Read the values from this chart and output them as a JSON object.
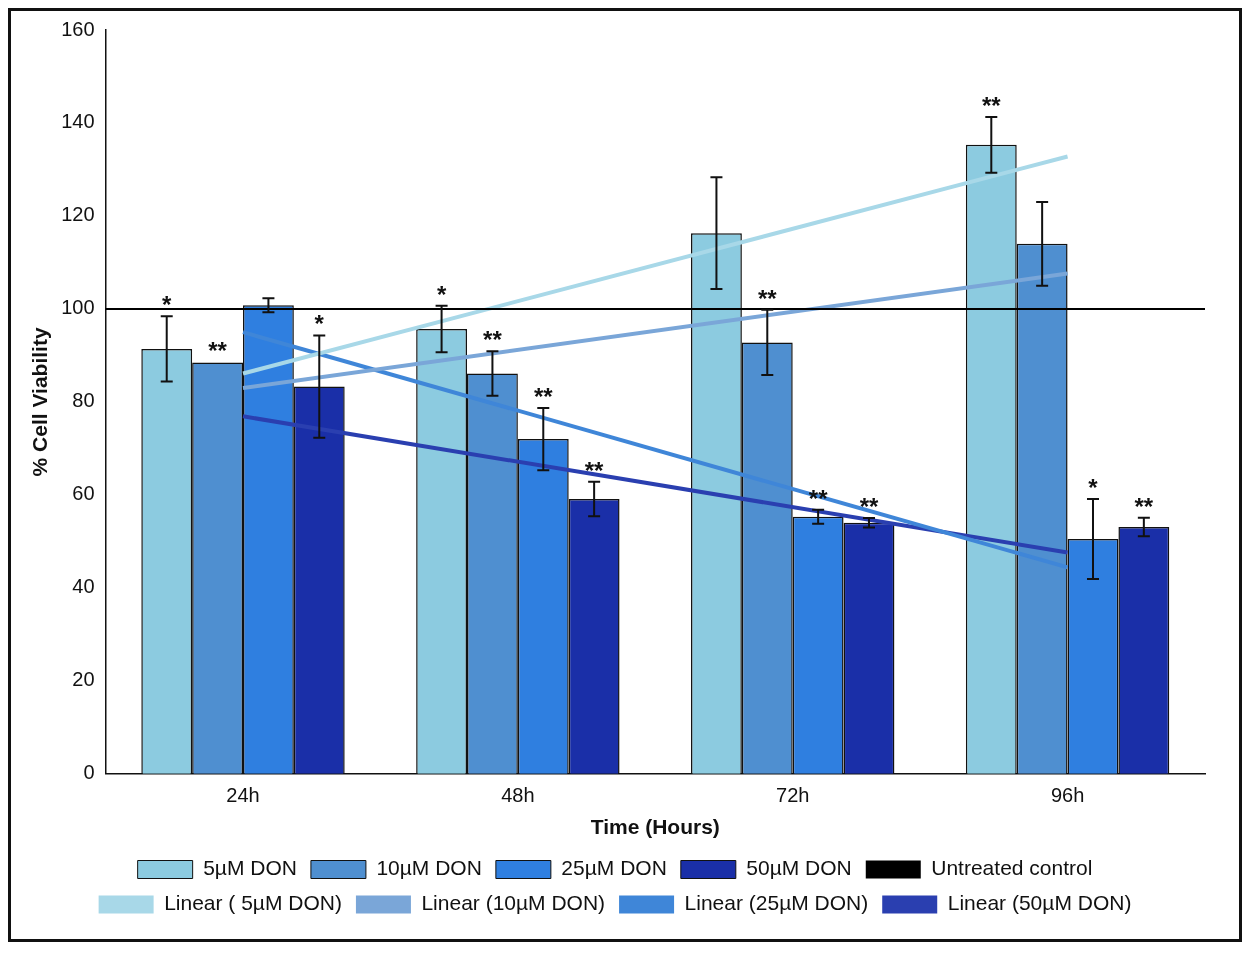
{
  "chart_data": {
    "type": "bar",
    "xlabel": "Time (Hours)",
    "ylabel": "% Cell Viability",
    "categories": [
      "24h",
      "48h",
      "72h",
      "96h"
    ],
    "ylim": [
      0,
      160
    ],
    "yticks": [
      0,
      20,
      40,
      60,
      80,
      100,
      120,
      140,
      160
    ],
    "grid": false,
    "legend": "bottom",
    "series": [
      {
        "name": "5µM DON",
        "color": "#8ccbe0",
        "values": [
          91.4,
          95.7,
          116.3,
          135.3
        ],
        "errors": [
          7,
          5,
          12,
          6
        ],
        "value_labels": [
          "*",
          "*",
          null,
          "**"
        ]
      },
      {
        "name": "10µM DON",
        "color": "#4f8fd0",
        "values": [
          88.5,
          86.1,
          92.8,
          114
        ],
        "errors": [
          null,
          4.8,
          7,
          9
        ],
        "value_labels": [
          "**",
          "**",
          "**",
          null
        ]
      },
      {
        "name": "25µM DON",
        "color": "#2f7fe0",
        "values": [
          100.8,
          72,
          55.3,
          50.5
        ],
        "errors": [
          1.5,
          6.7,
          1.5,
          8.6
        ],
        "value_labels": [
          null,
          "**",
          "**",
          "*"
        ]
      },
      {
        "name": "50µM DON",
        "color": "#1a2fa8",
        "values": [
          83.3,
          59.1,
          54,
          53.1
        ],
        "errors": [
          11,
          3.7,
          1,
          2
        ],
        "value_labels": [
          "*",
          "**",
          "**",
          "**"
        ]
      },
      {
        "name": "Linear ( 5µM DON)",
        "type": "line",
        "color": "#a8d8e8",
        "x": [
          "24h",
          "96h"
        ],
        "values": [
          86.1,
          132.8
        ]
      },
      {
        "name": "Linear (10µM DON)",
        "type": "line",
        "color": "#7aa6d8",
        "x": [
          "24h",
          "96h"
        ],
        "values": [
          83,
          107.6
        ]
      },
      {
        "name": "Linear (25µM DON)",
        "type": "line",
        "color": "#3f86d8",
        "x": [
          "24h",
          "96h"
        ],
        "values": [
          95,
          44.4
        ]
      },
      {
        "name": "Linear (50µM DON)",
        "type": "line",
        "color": "#2a3fb0",
        "x": [
          "24h",
          "96h"
        ],
        "values": [
          76.9,
          47.6
        ]
      }
    ],
    "ref_lines": [
      {
        "axis": "y",
        "value": 100,
        "label": "Untreated control",
        "color": "#000000"
      }
    ]
  }
}
